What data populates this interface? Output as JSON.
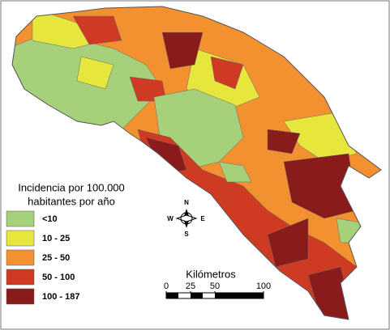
{
  "legend": {
    "title": [
      "Incidencia por 100.000",
      "habitantes por año"
    ],
    "items": [
      {
        "label": "<10",
        "color": "#a6d07a"
      },
      {
        "label": "10 - 25",
        "color": "#e6e63c"
      },
      {
        "label": "25 - 50",
        "color": "#f39130"
      },
      {
        "label": "50 - 100",
        "color": "#cf3a22"
      },
      {
        "label": "100 - 187",
        "color": "#8a1b1b"
      }
    ]
  },
  "compass": {
    "north": "N",
    "south": "S",
    "east": "E",
    "west": "W"
  },
  "scale": {
    "title": "Kilómetros",
    "ticks": [
      0,
      25,
      50,
      100
    ]
  }
}
